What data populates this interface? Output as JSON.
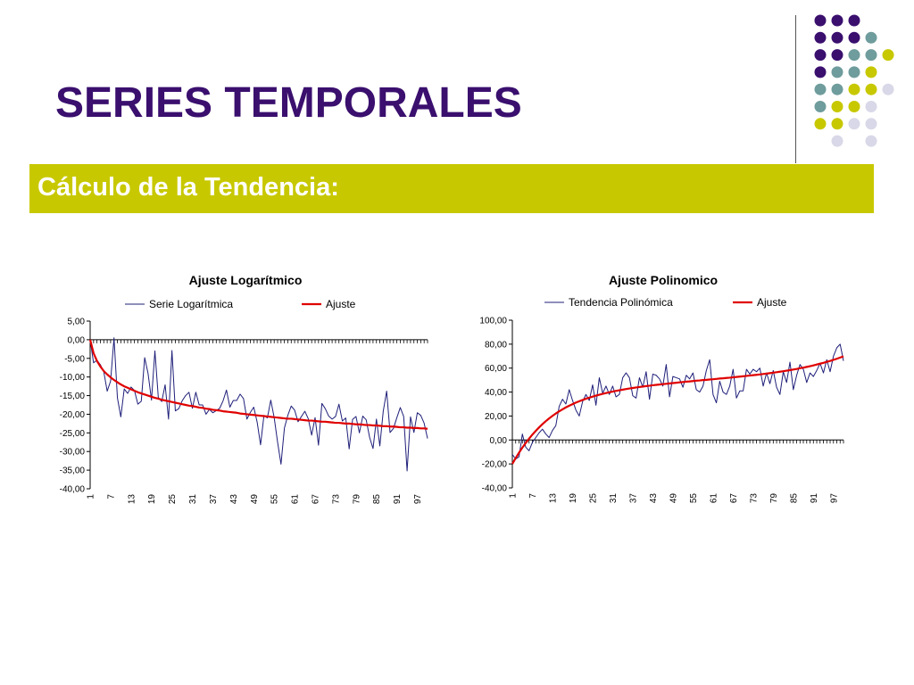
{
  "slide": {
    "title": "SERIES TEMPORALES",
    "subtitle": "Cálculo de la Tendencia:"
  },
  "colors": {
    "title": "#3a0f6e",
    "subtitle_bar": "#c8c800",
    "series_line": "#1f1f7a",
    "fit_line": "#e00000",
    "dots": [
      "#3a0f6e",
      "#6f9c9c",
      "#c8c800",
      "#d8d8e8"
    ]
  },
  "chart_data": [
    {
      "type": "line",
      "title": "Ajuste Logarítmico",
      "ylim": [
        -40,
        5
      ],
      "yticks": [
        5,
        0,
        -5,
        -10,
        -15,
        -20,
        -25,
        -30,
        -35,
        -40
      ],
      "ytick_labels": [
        "5,00",
        "0,00",
        "-5,00",
        "-10,00",
        "-15,00",
        "-20,00",
        "-25,00",
        "-30,00",
        "-35,00",
        "-40,00"
      ],
      "xtick_labels": [
        "1",
        "7",
        "13",
        "19",
        "25",
        "31",
        "37",
        "43",
        "49",
        "55",
        "61",
        "67",
        "73",
        "79",
        "85",
        "91",
        "97"
      ],
      "legend_position": "top",
      "grid": false,
      "x": [
        1,
        2,
        3,
        4,
        5,
        6,
        7,
        8,
        9,
        10,
        11,
        12,
        13,
        14,
        15,
        16,
        17,
        18,
        19,
        20,
        21,
        22,
        23,
        24,
        25,
        26,
        27,
        28,
        29,
        30,
        31,
        32,
        33,
        34,
        35,
        36,
        37,
        38,
        39,
        40,
        41,
        42,
        43,
        44,
        45,
        46,
        47,
        48,
        49,
        50,
        51,
        52,
        53,
        54,
        55,
        56,
        57,
        58,
        59,
        60,
        61,
        62,
        63,
        64,
        65,
        66,
        67,
        68,
        69,
        70,
        71,
        72,
        73,
        74,
        75,
        76,
        77,
        78,
        79,
        80,
        81,
        82,
        83,
        84,
        85,
        86,
        87,
        88,
        89,
        90,
        91,
        92,
        93,
        94,
        95,
        96,
        97,
        98,
        99,
        100
      ],
      "series": [
        {
          "name": "Serie Logarítmica",
          "values": [
            0.0,
            -6.2,
            -5.5,
            -6.7,
            -8.6,
            -13.8,
            -11.1,
            0.5,
            -15.6,
            -20.7,
            -13.2,
            -14.4,
            -12.7,
            -13.6,
            -17.3,
            -16.5,
            -4.8,
            -9.1,
            -16.2,
            -3.0,
            -15.5,
            -16.6,
            -12.1,
            -21.3,
            -2.9,
            -19.1,
            -18.5,
            -16.4,
            -15.0,
            -14.1,
            -18.4,
            -14.1,
            -17.5,
            -17.5,
            -20.0,
            -18.7,
            -19.6,
            -19.0,
            -18.4,
            -16.4,
            -13.5,
            -18.1,
            -16.3,
            -16.3,
            -14.6,
            -15.8,
            -21.3,
            -19.5,
            -18.1,
            -22.1,
            -28.2,
            -20.3,
            -21.0,
            -16.2,
            -20.9,
            -27.5,
            -33.4,
            -23.7,
            -20.3,
            -17.8,
            -18.9,
            -22.0,
            -20.6,
            -19.2,
            -21.2,
            -25.6,
            -20.9,
            -28.3,
            -17.1,
            -18.5,
            -20.5,
            -21.3,
            -20.6,
            -17.3,
            -21.8,
            -21.0,
            -29.3,
            -21.4,
            -20.6,
            -25.0,
            -20.5,
            -21.5,
            -26.2,
            -29.2,
            -21.3,
            -28.5,
            -19.2,
            -13.8,
            -24.9,
            -23.8,
            -20.9,
            -18.2,
            -20.6,
            -35.2,
            -20.7,
            -24.9,
            -19.6,
            -20.3,
            -22.4,
            -26.5
          ]
        },
        {
          "name": "Ajuste",
          "values": [
            0.0,
            -3.6,
            -5.7,
            -7.2,
            -8.4,
            -9.3,
            -10.1,
            -10.8,
            -11.4,
            -12.0,
            -12.5,
            -12.9,
            -13.3,
            -13.7,
            -14.1,
            -14.4,
            -14.7,
            -15.0,
            -15.3,
            -15.6,
            -15.8,
            -16.1,
            -16.3,
            -16.5,
            -16.7,
            -16.9,
            -17.1,
            -17.3,
            -17.5,
            -17.7,
            -17.8,
            -18.0,
            -18.2,
            -18.3,
            -18.5,
            -18.6,
            -18.8,
            -18.9,
            -19.0,
            -19.2,
            -19.3,
            -19.4,
            -19.5,
            -19.6,
            -19.8,
            -19.9,
            -20.0,
            -20.1,
            -20.2,
            -20.3,
            -20.4,
            -20.5,
            -20.6,
            -20.7,
            -20.8,
            -20.9,
            -21.0,
            -21.1,
            -21.2,
            -21.2,
            -21.3,
            -21.4,
            -21.5,
            -21.6,
            -21.7,
            -21.7,
            -21.8,
            -21.9,
            -22.0,
            -22.0,
            -22.1,
            -22.2,
            -22.3,
            -22.3,
            -22.4,
            -22.5,
            -22.5,
            -22.6,
            -22.7,
            -22.7,
            -22.8,
            -22.9,
            -22.9,
            -23.0,
            -23.0,
            -23.1,
            -23.2,
            -23.2,
            -23.3,
            -23.3,
            -23.4,
            -23.5,
            -23.5,
            -23.6,
            -23.6,
            -23.7,
            -23.7,
            -23.8,
            -23.8,
            -23.9
          ]
        }
      ]
    },
    {
      "type": "line",
      "title": "Ajuste Polinomico",
      "ylim": [
        -40,
        100
      ],
      "yticks": [
        100,
        80,
        60,
        40,
        20,
        0,
        -20,
        -40
      ],
      "ytick_labels": [
        "100,00",
        "80,00",
        "60,00",
        "40,00",
        "20,00",
        "0,00",
        "-20,00",
        "-40,00"
      ],
      "xtick_labels": [
        "1",
        "7",
        "13",
        "19",
        "25",
        "31",
        "37",
        "43",
        "49",
        "55",
        "61",
        "67",
        "73",
        "79",
        "85",
        "91",
        "97"
      ],
      "legend_position": "top",
      "grid": false,
      "x": [
        1,
        2,
        3,
        4,
        5,
        6,
        7,
        8,
        9,
        10,
        11,
        12,
        13,
        14,
        15,
        16,
        17,
        18,
        19,
        20,
        21,
        22,
        23,
        24,
        25,
        26,
        27,
        28,
        29,
        30,
        31,
        32,
        33,
        34,
        35,
        36,
        37,
        38,
        39,
        40,
        41,
        42,
        43,
        44,
        45,
        46,
        47,
        48,
        49,
        50,
        51,
        52,
        53,
        54,
        55,
        56,
        57,
        58,
        59,
        60,
        61,
        62,
        63,
        64,
        65,
        66,
        67,
        68,
        69,
        70,
        71,
        72,
        73,
        74,
        75,
        76,
        77,
        78,
        79,
        80,
        81,
        82,
        83,
        84,
        85,
        86,
        87,
        88,
        89,
        90,
        91,
        92,
        93,
        94,
        95,
        96,
        97,
        98,
        99,
        100
      ],
      "series": [
        {
          "name": "Tendencia Polinómica",
          "values": [
            -12.0,
            -16.0,
            -14.0,
            5.0,
            -6.0,
            -9.0,
            -2.0,
            2.0,
            6.0,
            9.0,
            5.0,
            2.0,
            8.0,
            12.0,
            28.0,
            34.0,
            30.0,
            42.0,
            33.0,
            25.0,
            20.0,
            32.0,
            38.0,
            33.0,
            46.0,
            29.0,
            52.0,
            39.0,
            45.0,
            38.0,
            45.0,
            36.0,
            38.0,
            52.0,
            56.0,
            52.0,
            37.0,
            35.0,
            52.0,
            44.0,
            57.0,
            34.0,
            55.0,
            54.0,
            51.0,
            45.0,
            63.0,
            36.0,
            53.0,
            52.0,
            51.0,
            44.0,
            54.0,
            51.0,
            56.0,
            42.0,
            40.0,
            45.0,
            58.0,
            67.0,
            38.0,
            31.0,
            49.0,
            40.0,
            38.0,
            45.0,
            59.0,
            35.0,
            41.0,
            41.0,
            59.0,
            55.0,
            59.0,
            57.0,
            60.0,
            45.0,
            56.0,
            47.0,
            58.0,
            44.0,
            38.0,
            57.0,
            48.0,
            65.0,
            42.0,
            54.0,
            63.0,
            59.0,
            48.0,
            56.0,
            53.0,
            58.0,
            64.0,
            56.0,
            67.0,
            57.0,
            70.0,
            77.0,
            80.0,
            66.0
          ]
        },
        {
          "name": "Ajuste",
          "values": [
            -20.0,
            -15.1,
            -10.6,
            -6.4,
            -2.5,
            1.1,
            4.5,
            7.6,
            10.5,
            13.2,
            15.7,
            18.0,
            20.1,
            22.1,
            23.9,
            25.6,
            27.2,
            28.6,
            29.9,
            31.2,
            32.3,
            33.4,
            34.4,
            35.3,
            36.2,
            37.0,
            37.8,
            38.5,
            39.2,
            39.8,
            40.4,
            41.0,
            41.5,
            42.0,
            42.5,
            43.0,
            43.4,
            43.8,
            44.2,
            44.6,
            45.0,
            45.3,
            45.7,
            46.0,
            46.3,
            46.6,
            46.9,
            47.2,
            47.5,
            47.8,
            48.1,
            48.4,
            48.7,
            48.9,
            49.2,
            49.5,
            49.7,
            50.0,
            50.2,
            50.5,
            50.7,
            51.0,
            51.3,
            51.5,
            51.8,
            52.0,
            52.3,
            52.6,
            52.9,
            53.2,
            53.5,
            53.8,
            54.1,
            54.4,
            54.7,
            55.1,
            55.4,
            55.8,
            56.2,
            56.6,
            57.0,
            57.4,
            57.9,
            58.3,
            58.8,
            59.3,
            59.9,
            60.4,
            61.0,
            61.6,
            62.3,
            63.0,
            63.7,
            64.4,
            65.2,
            66.0,
            66.9,
            67.8,
            68.8,
            69.8
          ]
        }
      ]
    }
  ]
}
